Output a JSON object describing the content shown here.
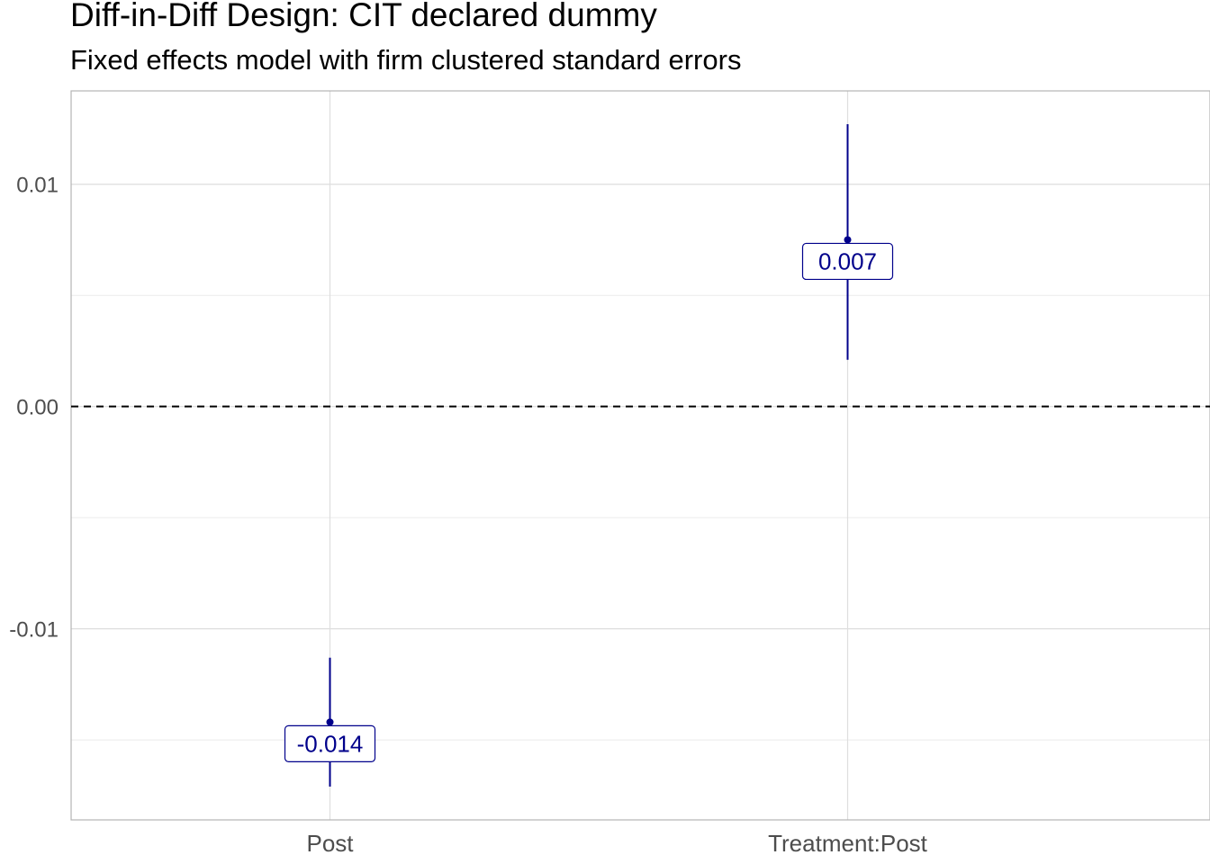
{
  "chart_data": {
    "type": "scatter",
    "title": "Diff-in-Diff Design: CIT declared dummy",
    "subtitle": "Fixed effects model with firm clustered standard errors",
    "xlabel": "",
    "ylabel": "",
    "categories": [
      "Post",
      "Treatment:Post"
    ],
    "estimates": [
      -0.0142,
      0.0075
    ],
    "lower": [
      -0.0171,
      0.0021
    ],
    "upper": [
      -0.0113,
      0.0127
    ],
    "labels": [
      "-0.014",
      "0.007"
    ],
    "yticks": [
      -0.01,
      0.0,
      0.01
    ],
    "ytick_labels": [
      "-0.01",
      "0.00",
      "0.01"
    ],
    "ylim": [
      -0.0186,
      0.0142
    ],
    "reference_line": 0,
    "grid": true,
    "colors": {
      "point": "#00008b",
      "reference_line": "#000000"
    }
  }
}
